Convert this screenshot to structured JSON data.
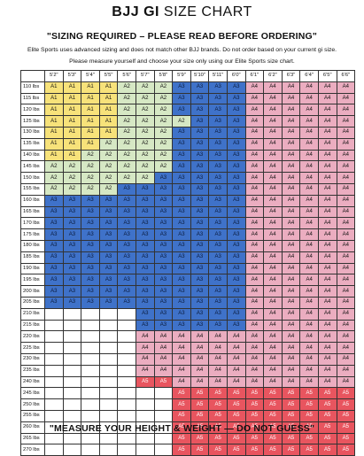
{
  "header": {
    "title_bold": "BJJ GI",
    "title_light": "SIZE CHART",
    "subtitle": "\"SIZING REQUIRED – PLEASE READ BEFORE ORDERING\"",
    "note1": "Elite Sports uses advanced sizing and does not match other BJJ brands. Do not order based on your current gi size.",
    "note2": "Please measure yourself and choose your size only using our Elite Sports size chart."
  },
  "grid": {
    "heights": [
      "5'2\"",
      "5'3\"",
      "5'4\"",
      "5'5\"",
      "5'6\"",
      "5'7\"",
      "5'8\"",
      "5'9\"",
      "5'10\"",
      "5'11\"",
      "6'0\"",
      "6'1\"",
      "6'2\"",
      "6'3\"",
      "6'4\"",
      "6'5\"",
      "6'6\""
    ],
    "rows": [
      {
        "weight": "110 lbs",
        "sizes": [
          "A1",
          "A1",
          "A1",
          "A1",
          "A2",
          "A2",
          "A2",
          "A3",
          "A3",
          "A3",
          "A3",
          "A4",
          "A4",
          "A4",
          "A4",
          "A4",
          "A4"
        ]
      },
      {
        "weight": "115 lbs",
        "sizes": [
          "A1",
          "A1",
          "A1",
          "A1",
          "A2",
          "A2",
          "A2",
          "A3",
          "A3",
          "A3",
          "A3",
          "A4",
          "A4",
          "A4",
          "A4",
          "A4",
          "A4"
        ]
      },
      {
        "weight": "120 lbs",
        "sizes": [
          "A1",
          "A1",
          "A1",
          "A1",
          "A2",
          "A2",
          "A2",
          "A3",
          "A3",
          "A3",
          "A3",
          "A4",
          "A4",
          "A4",
          "A4",
          "A4",
          "A4"
        ]
      },
      {
        "weight": "125 lbs",
        "sizes": [
          "A1",
          "A1",
          "A1",
          "A1",
          "A2",
          "A2",
          "A2",
          "A2",
          "A3",
          "A3",
          "A3",
          "A4",
          "A4",
          "A4",
          "A4",
          "A4",
          "A4"
        ]
      },
      {
        "weight": "130 lbs",
        "sizes": [
          "A1",
          "A1",
          "A1",
          "A1",
          "A2",
          "A2",
          "A2",
          "A3",
          "A3",
          "A3",
          "A3",
          "A4",
          "A4",
          "A4",
          "A4",
          "A4",
          "A4"
        ]
      },
      {
        "weight": "135 lbs",
        "sizes": [
          "A1",
          "A1",
          "A1",
          "A2",
          "A2",
          "A2",
          "A2",
          "A3",
          "A3",
          "A3",
          "A3",
          "A4",
          "A4",
          "A4",
          "A4",
          "A4",
          "A4"
        ]
      },
      {
        "weight": "140 lbs",
        "sizes": [
          "A1",
          "A1",
          "A2",
          "A2",
          "A2",
          "A2",
          "A2",
          "A3",
          "A3",
          "A3",
          "A3",
          "A4",
          "A4",
          "A4",
          "A4",
          "A4",
          "A4"
        ]
      },
      {
        "weight": "145 lbs",
        "sizes": [
          "A2",
          "A2",
          "A2",
          "A2",
          "A2",
          "A2",
          "A2",
          "A3",
          "A3",
          "A3",
          "A3",
          "A4",
          "A4",
          "A4",
          "A4",
          "A4",
          "A4"
        ]
      },
      {
        "weight": "150 lbs",
        "sizes": [
          "A2",
          "A2",
          "A2",
          "A2",
          "A2",
          "A2",
          "A3",
          "A3",
          "A3",
          "A3",
          "A3",
          "A4",
          "A4",
          "A4",
          "A4",
          "A4",
          "A4"
        ]
      },
      {
        "weight": "155 lbs",
        "sizes": [
          "A2",
          "A2",
          "A2",
          "A2",
          "A3",
          "A3",
          "A3",
          "A3",
          "A3",
          "A3",
          "A3",
          "A4",
          "A4",
          "A4",
          "A4",
          "A4",
          "A4"
        ]
      },
      {
        "weight": "160 lbs",
        "sizes": [
          "A3",
          "A3",
          "A3",
          "A3",
          "A3",
          "A3",
          "A3",
          "A3",
          "A3",
          "A3",
          "A3",
          "A4",
          "A4",
          "A4",
          "A4",
          "A4",
          "A4"
        ]
      },
      {
        "weight": "165 lbs",
        "sizes": [
          "A3",
          "A3",
          "A3",
          "A3",
          "A3",
          "A3",
          "A3",
          "A3",
          "A3",
          "A3",
          "A3",
          "A4",
          "A4",
          "A4",
          "A4",
          "A4",
          "A4"
        ]
      },
      {
        "weight": "170 lbs",
        "sizes": [
          "A3",
          "A3",
          "A3",
          "A3",
          "A3",
          "A3",
          "A3",
          "A3",
          "A3",
          "A3",
          "A3",
          "A4",
          "A4",
          "A4",
          "A4",
          "A4",
          "A4"
        ]
      },
      {
        "weight": "175 lbs",
        "sizes": [
          "A3",
          "A3",
          "A3",
          "A3",
          "A3",
          "A3",
          "A3",
          "A3",
          "A3",
          "A3",
          "A3",
          "A4",
          "A4",
          "A4",
          "A4",
          "A4",
          "A4"
        ]
      },
      {
        "weight": "180 lbs",
        "sizes": [
          "A3",
          "A3",
          "A3",
          "A3",
          "A3",
          "A3",
          "A3",
          "A3",
          "A3",
          "A3",
          "A3",
          "A4",
          "A4",
          "A4",
          "A4",
          "A4",
          "A4"
        ]
      },
      {
        "weight": "185 lbs",
        "sizes": [
          "A3",
          "A3",
          "A3",
          "A3",
          "A3",
          "A3",
          "A3",
          "A3",
          "A3",
          "A3",
          "A3",
          "A4",
          "A4",
          "A4",
          "A4",
          "A4",
          "A4"
        ]
      },
      {
        "weight": "190 lbs",
        "sizes": [
          "A3",
          "A3",
          "A3",
          "A3",
          "A3",
          "A3",
          "A3",
          "A3",
          "A3",
          "A3",
          "A3",
          "A4",
          "A4",
          "A4",
          "A4",
          "A4",
          "A4"
        ]
      },
      {
        "weight": "195 lbs",
        "sizes": [
          "A3",
          "A3",
          "A3",
          "A3",
          "A3",
          "A3",
          "A3",
          "A3",
          "A3",
          "A3",
          "A3",
          "A4",
          "A4",
          "A4",
          "A4",
          "A4",
          "A4"
        ]
      },
      {
        "weight": "200 lbs",
        "sizes": [
          "A3",
          "A3",
          "A3",
          "A3",
          "A3",
          "A3",
          "A3",
          "A3",
          "A3",
          "A3",
          "A3",
          "A4",
          "A4",
          "A4",
          "A4",
          "A4",
          "A4"
        ]
      },
      {
        "weight": "205 lbs",
        "sizes": [
          "A3",
          "A3",
          "A3",
          "A3",
          "A3",
          "A3",
          "A3",
          "A3",
          "A3",
          "A3",
          "A3",
          "A4",
          "A4",
          "A4",
          "A4",
          "A4",
          "A4"
        ]
      },
      {
        "weight": "210 lbs",
        "sizes": [
          "",
          "",
          "",
          "",
          "",
          "A3",
          "A3",
          "A3",
          "A3",
          "A3",
          "A3",
          "A4",
          "A4",
          "A4",
          "A4",
          "A4",
          "A4"
        ]
      },
      {
        "weight": "215 lbs",
        "sizes": [
          "",
          "",
          "",
          "",
          "",
          "A3",
          "A3",
          "A3",
          "A3",
          "A3",
          "A3",
          "A4",
          "A4",
          "A4",
          "A4",
          "A4",
          "A4"
        ]
      },
      {
        "weight": "220 lbs",
        "sizes": [
          "",
          "",
          "",
          "",
          "",
          "A4",
          "A4",
          "A4",
          "A4",
          "A4",
          "A4",
          "A4",
          "A4",
          "A4",
          "A4",
          "A4",
          "A4"
        ]
      },
      {
        "weight": "225 lbs",
        "sizes": [
          "",
          "",
          "",
          "",
          "",
          "A4",
          "A4",
          "A4",
          "A4",
          "A4",
          "A4",
          "A4",
          "A4",
          "A4",
          "A4",
          "A4",
          "A4"
        ]
      },
      {
        "weight": "230 lbs",
        "sizes": [
          "",
          "",
          "",
          "",
          "",
          "A4",
          "A4",
          "A4",
          "A4",
          "A4",
          "A4",
          "A4",
          "A4",
          "A4",
          "A4",
          "A4",
          "A4"
        ]
      },
      {
        "weight": "235 lbs",
        "sizes": [
          "",
          "",
          "",
          "",
          "",
          "A4",
          "A4",
          "A4",
          "A4",
          "A4",
          "A4",
          "A4",
          "A4",
          "A4",
          "A4",
          "A4",
          "A4"
        ]
      },
      {
        "weight": "240 lbs",
        "sizes": [
          "",
          "",
          "",
          "",
          "",
          "A5",
          "A5",
          "A4",
          "A4",
          "A4",
          "A4",
          "A4",
          "A4",
          "A4",
          "A4",
          "A4",
          "A4"
        ]
      },
      {
        "weight": "245 lbs",
        "sizes": [
          "",
          "",
          "",
          "",
          "",
          "",
          "",
          "A5",
          "A5",
          "A5",
          "A5",
          "A5",
          "A5",
          "A5",
          "A5",
          "A5",
          "A5"
        ]
      },
      {
        "weight": "250 lbs",
        "sizes": [
          "",
          "",
          "",
          "",
          "",
          "",
          "",
          "A5",
          "A5",
          "A5",
          "A5",
          "A5",
          "A5",
          "A5",
          "A5",
          "A5",
          "A5"
        ]
      },
      {
        "weight": "255 lbs",
        "sizes": [
          "",
          "",
          "",
          "",
          "",
          "",
          "",
          "A5",
          "A5",
          "A5",
          "A5",
          "A5",
          "A5",
          "A5",
          "A5",
          "A5",
          "A5"
        ]
      },
      {
        "weight": "260 lbs",
        "sizes": [
          "",
          "",
          "",
          "",
          "",
          "",
          "",
          "A5",
          "A5",
          "A5",
          "A5",
          "A5",
          "A5",
          "A5",
          "A5",
          "A5",
          "A5"
        ]
      },
      {
        "weight": "265 lbs",
        "sizes": [
          "",
          "",
          "",
          "",
          "",
          "",
          "",
          "A5",
          "A5",
          "A5",
          "A5",
          "A5",
          "A5",
          "A5",
          "A5",
          "A5",
          "A5"
        ]
      },
      {
        "weight": "270 lbs",
        "sizes": [
          "",
          "",
          "",
          "",
          "",
          "",
          "",
          "A5",
          "A5",
          "A5",
          "A5",
          "A5",
          "A5",
          "A5",
          "A5",
          "A5",
          "A5"
        ]
      }
    ]
  },
  "colors": {
    "A1": "#f7e27a",
    "A2": "#d6e8c4",
    "A3": "#3f72c9",
    "A4": "#ebadc0",
    "A5": "#e8555f"
  },
  "footer": {
    "text": "\"MEASURE YOUR HEIGHT & WEIGHT — DO NOT GUESS\""
  }
}
